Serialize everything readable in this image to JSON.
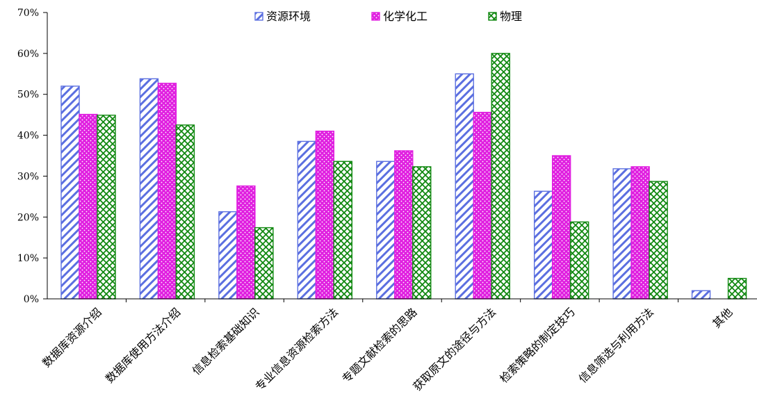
{
  "chart_data": {
    "type": "bar",
    "categories": [
      "数据库资源介绍",
      "数据库使用方法介绍",
      "信息检索基础知识",
      "专业信息资源检索方法",
      "专题文献检索的思路",
      "获取原文的途径与方法",
      "检索策略的制定技巧",
      "信息筛选与利用方法",
      "其他"
    ],
    "series": [
      {
        "name": "资源环境",
        "color": "#5b6fe0",
        "pattern": "diagonal-stripes",
        "values": [
          52,
          53.8,
          21.3,
          38.5,
          33.6,
          55,
          26.3,
          31.8,
          2
        ]
      },
      {
        "name": "化学化工",
        "color": "#e020e0",
        "pattern": "dots",
        "values": [
          45.1,
          52.7,
          27.6,
          41,
          36.2,
          45.6,
          35,
          32.3,
          0
        ]
      },
      {
        "name": "物理",
        "color": "#108810",
        "pattern": "crosshatch",
        "values": [
          44.9,
          42.5,
          17.4,
          33.6,
          32.3,
          60,
          18.8,
          28.7,
          5
        ]
      }
    ],
    "ylim": [
      0,
      70
    ],
    "yticks": [
      "0%",
      "10%",
      "20%",
      "30%",
      "40%",
      "50%",
      "60%",
      "70%"
    ],
    "legend_position": "top-center",
    "grid": false
  }
}
